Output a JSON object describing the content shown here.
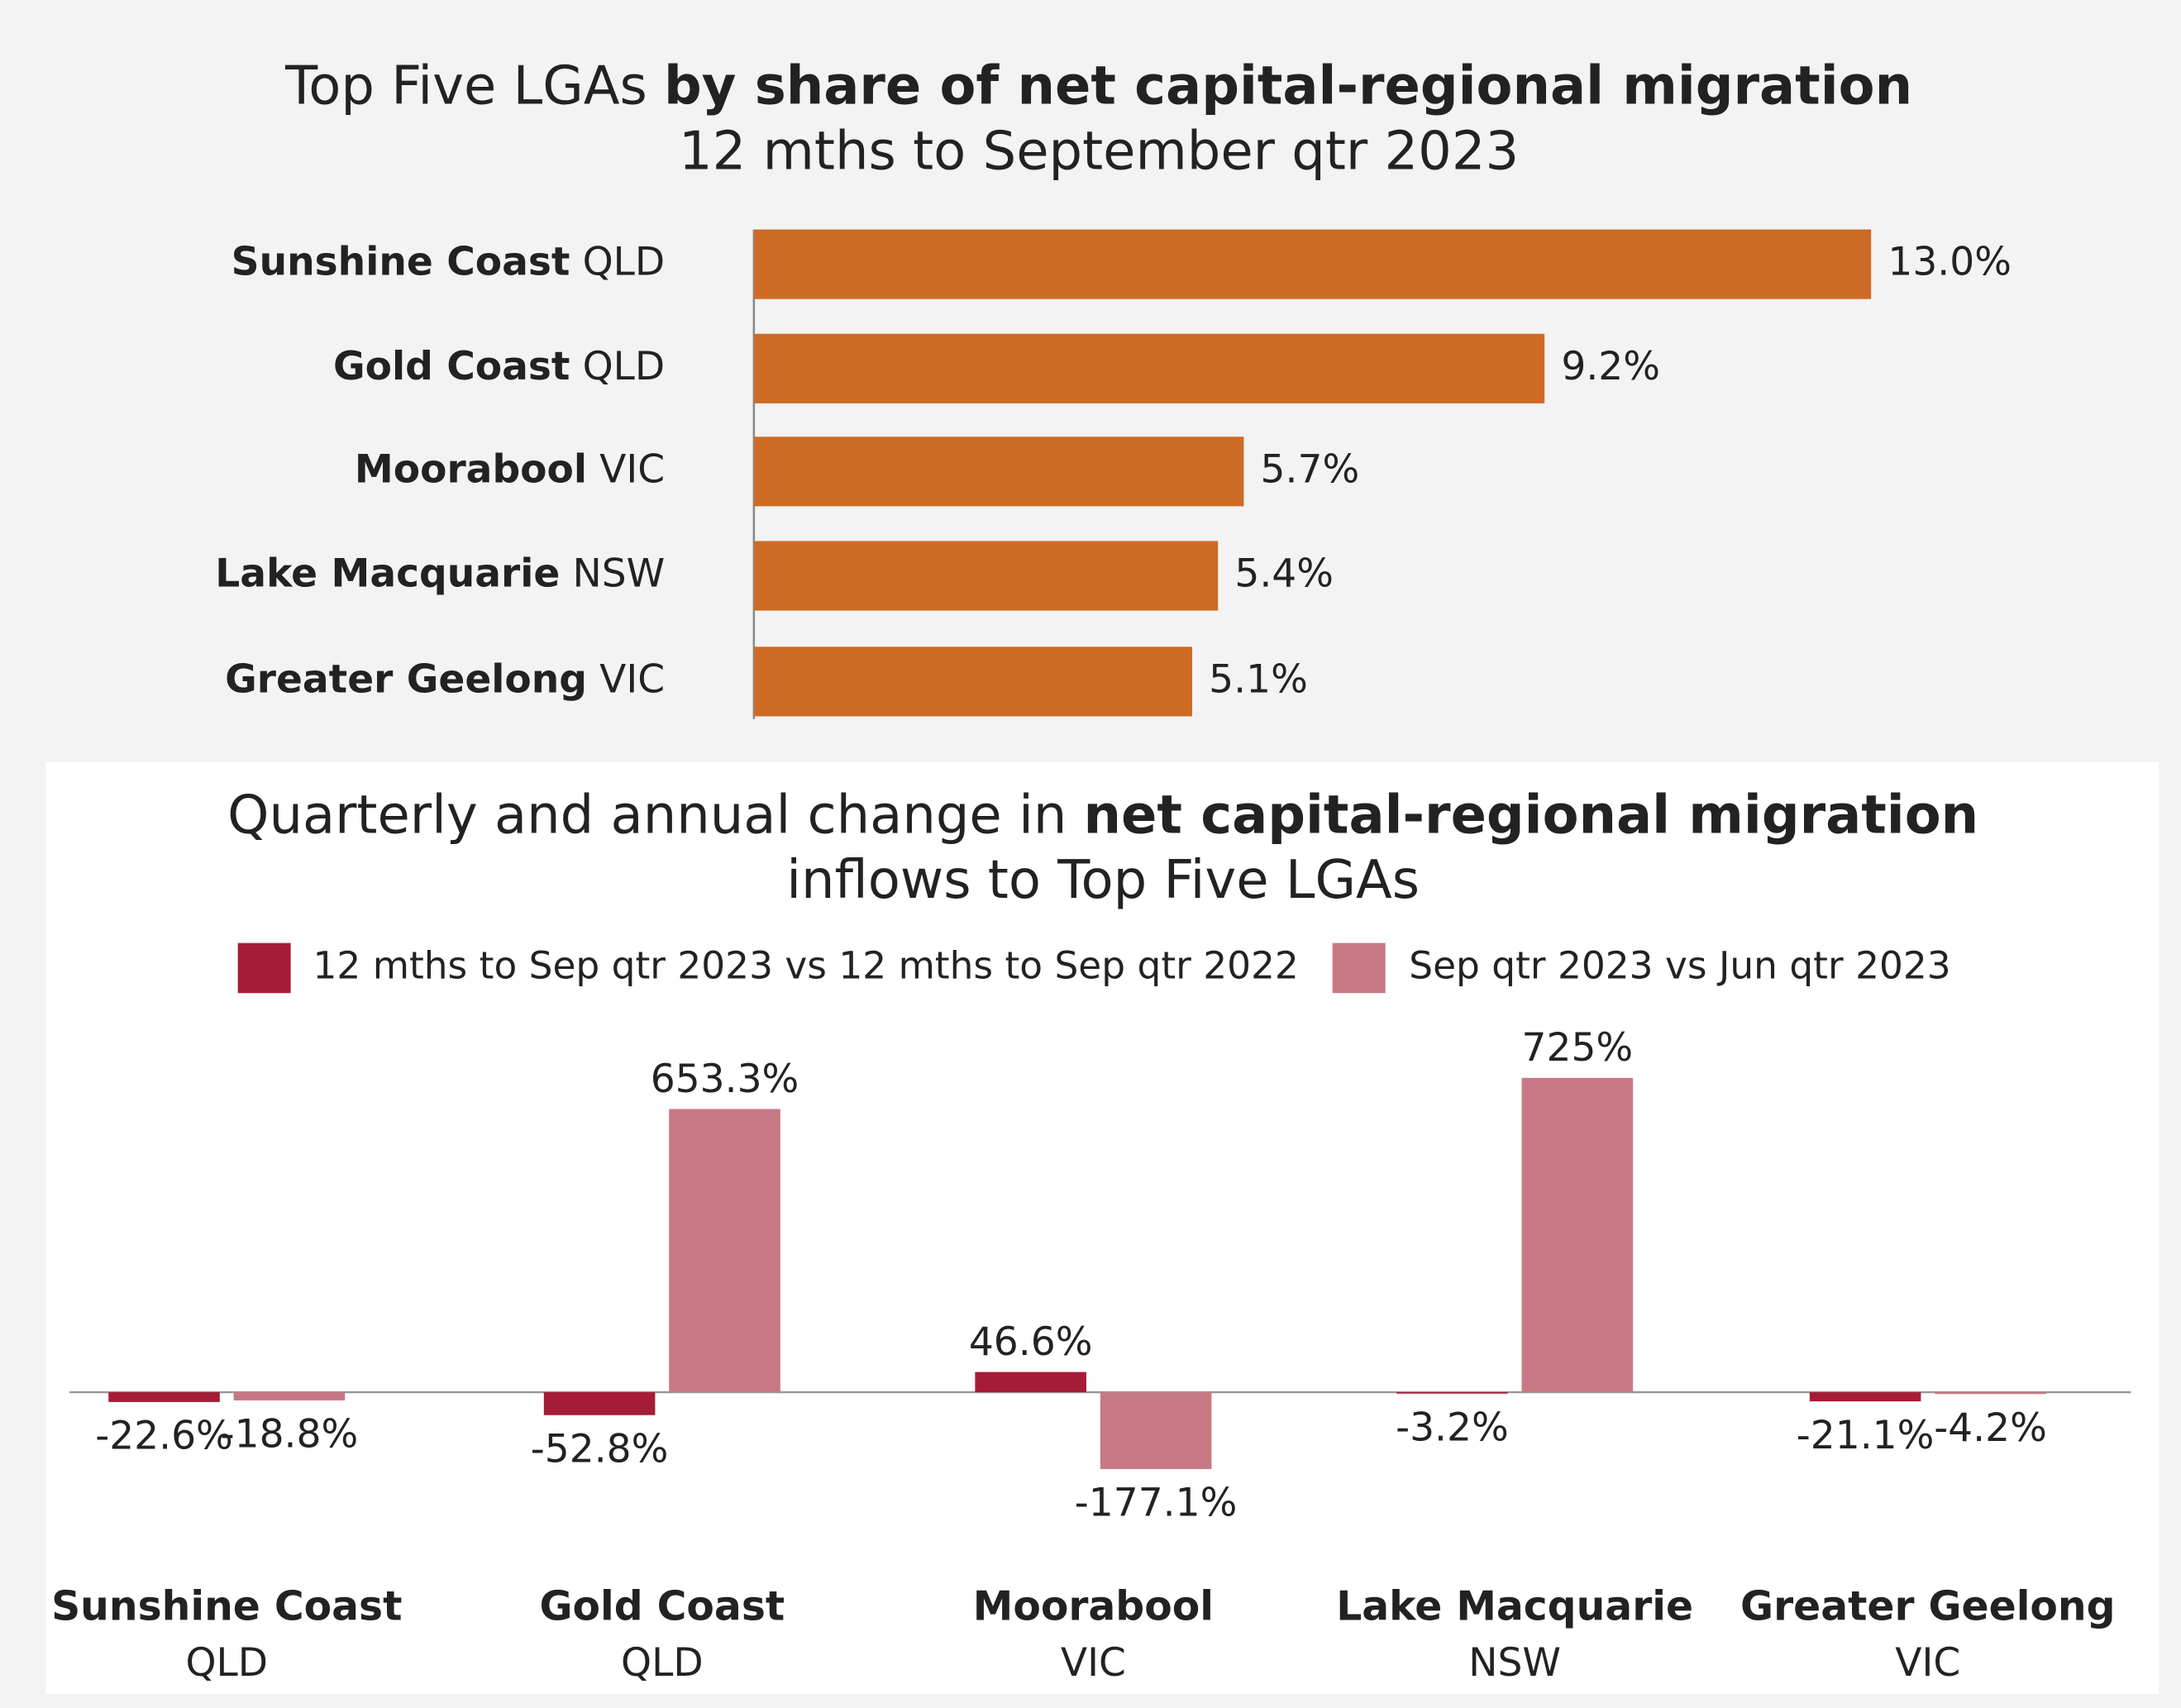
{
  "chart_data": [
    {
      "type": "hbar",
      "title": [
        "Top Five LGAs",
        "by share of net capital-regional migration"
      ],
      "subtitle": "12 mths to September qtr 2023",
      "categories": [
        "Sunshine Coast",
        "Gold Coast",
        "Moorabool",
        "Lake Macquarie",
        "Greater Geelong"
      ],
      "category_states": [
        "QLD",
        "QLD",
        "VIC",
        "NSW",
        "VIC"
      ],
      "values": [
        13.0,
        9.2,
        5.7,
        5.4,
        5.1
      ],
      "value_labels": [
        "13.0%",
        "9.2%",
        "5.7%",
        "5.4%",
        "5.1%"
      ],
      "color": "#cd6b24",
      "xlim": [
        0,
        14
      ]
    },
    {
      "type": "groupedbar",
      "title": [
        "Quarterly and annual change in",
        "net capital-regional migration"
      ],
      "subtitle": "inflows to Top Five LGAs",
      "categories": [
        "Sunshine Coast",
        "Gold Coast",
        "Moorabool",
        "Lake Macquarie",
        "Greater Geelong"
      ],
      "category_states": [
        "QLD",
        "QLD",
        "VIC",
        "NSW",
        "VIC"
      ],
      "series": [
        {
          "name": "12 mths to Sep qtr 2023 vs 12 mths to Sep qtr 2022",
          "color": "#a51c36",
          "values": [
            -22.6,
            -52.8,
            46.6,
            -3.2,
            -21.1
          ],
          "value_labels": [
            "-22.6%",
            "-52.8%",
            "46.6%",
            "-3.2%",
            "-21.1%"
          ]
        },
        {
          "name": "Sep qtr 2023 vs Jun qtr 2023",
          "color": "#c87884",
          "values": [
            -18.8,
            653.3,
            -177.1,
            725,
            -4.2
          ],
          "value_labels": [
            "-18.8%",
            "653.3%",
            "-177.1%",
            "725%",
            "-4.2%"
          ]
        }
      ],
      "ylim": [
        -250,
        800
      ]
    }
  ]
}
